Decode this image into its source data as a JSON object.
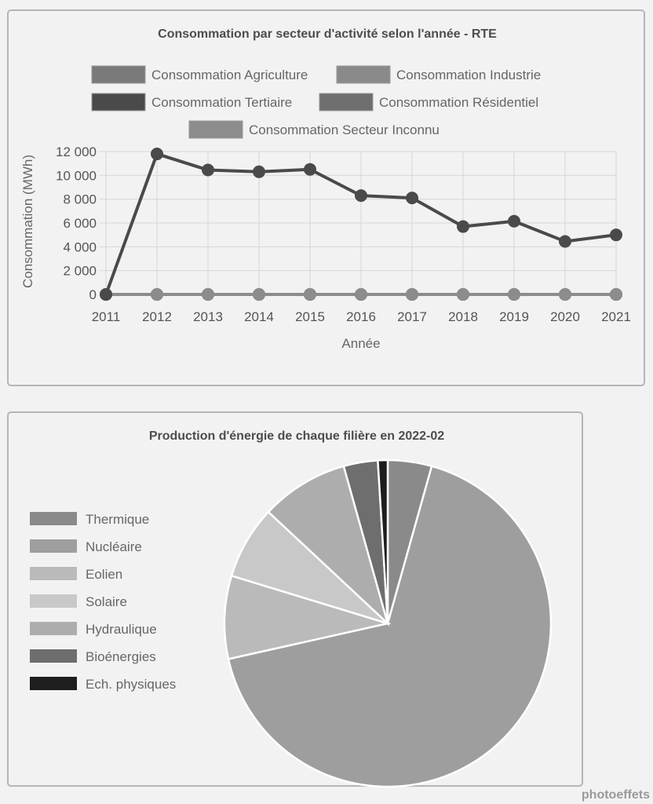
{
  "chart_data": [
    {
      "type": "line",
      "title": "Consommation par secteur d'activité selon l'année - RTE",
      "xlabel": "Année",
      "ylabel": "Consommation (MWh)",
      "x": [
        "2011",
        "2012",
        "2013",
        "2014",
        "2015",
        "2016",
        "2017",
        "2018",
        "2019",
        "2020",
        "2021"
      ],
      "ylim": [
        0,
        12000
      ],
      "yticks": [
        0,
        2000,
        4000,
        6000,
        8000,
        10000,
        12000
      ],
      "ytick_labels": [
        "0",
        "2 000",
        "4 000",
        "6 000",
        "8 000",
        "10 000",
        "12 000"
      ],
      "grid": true,
      "legend_position": "top",
      "series": [
        {
          "name": "Consommation Agriculture",
          "color": "#7a7a7a",
          "values": [
            0,
            0,
            0,
            0,
            0,
            0,
            0,
            0,
            0,
            0,
            0
          ]
        },
        {
          "name": "Consommation Industrie",
          "color": "#8a8a8a",
          "values": [
            0,
            0,
            0,
            0,
            0,
            0,
            0,
            0,
            0,
            0,
            0
          ]
        },
        {
          "name": "Consommation Tertiaire",
          "color": "#4a4a4a",
          "values": [
            0,
            11800,
            10450,
            10300,
            10500,
            8300,
            8100,
            5700,
            6150,
            4450,
            5000
          ]
        },
        {
          "name": "Consommation Résidentiel",
          "color": "#6e6e6e",
          "values": [
            0,
            0,
            0,
            0,
            0,
            0,
            0,
            0,
            0,
            0,
            0
          ]
        },
        {
          "name": "Consommation Secteur Inconnu",
          "color": "#8c8c8c",
          "values": [
            0,
            0,
            0,
            0,
            0,
            0,
            0,
            0,
            0,
            0,
            0
          ]
        }
      ]
    },
    {
      "type": "pie",
      "title": "Production d'énergie de chaque filière en 2022-02",
      "legend_position": "left",
      "slices": [
        {
          "label": "Thermique",
          "value": 4.5,
          "color": "#8a8a8a"
        },
        {
          "label": "Nucléaire",
          "value": 69.5,
          "color": "#9e9e9e"
        },
        {
          "label": "Eolien",
          "value": 8.5,
          "color": "#bababa"
        },
        {
          "label": "Solaire",
          "value": 7.5,
          "color": "#c8c8c8"
        },
        {
          "label": "Hydraulique",
          "value": 9.0,
          "color": "#adadad"
        },
        {
          "label": "Bioénergies",
          "value": 3.5,
          "color": "#6e6e6e"
        },
        {
          "label": "Ech. physiques",
          "value": 1.0,
          "color": "#1e1e1e"
        }
      ]
    }
  ],
  "watermark": "photoeffets"
}
